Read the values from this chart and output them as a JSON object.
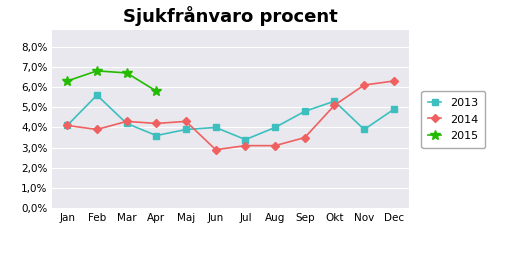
{
  "title": "Sjukfrånvaro procent",
  "months": [
    "Jan",
    "Feb",
    "Mar",
    "Apr",
    "Maj",
    "Jun",
    "Jul",
    "Aug",
    "Sep",
    "Okt",
    "Nov",
    "Dec"
  ],
  "series_2013": [
    0.041,
    0.056,
    0.042,
    0.036,
    0.039,
    0.04,
    0.034,
    0.04,
    0.048,
    0.053,
    0.039,
    0.049
  ],
  "series_2014": [
    0.041,
    0.039,
    0.043,
    0.042,
    0.043,
    0.029,
    0.031,
    0.031,
    0.035,
    0.051,
    0.061,
    0.063
  ],
  "series_2015": [
    0.063,
    0.068,
    0.067,
    0.058,
    null,
    null,
    null,
    null,
    null,
    null,
    null,
    null
  ],
  "color_2013": "#3DBFBF",
  "color_2014": "#F06060",
  "color_2015": "#22BB00",
  "ylim": [
    0.0,
    0.088
  ],
  "yticks": [
    0.0,
    0.01,
    0.02,
    0.03,
    0.04,
    0.05,
    0.06,
    0.07,
    0.08
  ],
  "plot_bg_color": "#E8E8EE",
  "fig_bg_color": "#FFFFFF",
  "title_fontsize": 13,
  "tick_fontsize": 7.5,
  "legend_labels": [
    "2013",
    "2014",
    "2015"
  ]
}
